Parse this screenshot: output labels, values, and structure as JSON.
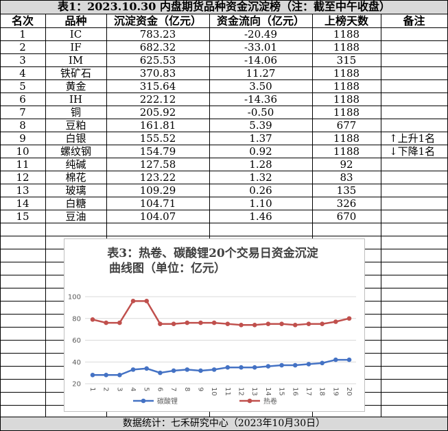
{
  "table": {
    "title": "表1：2023.10.30 内盘期货品种资金沉淀榜（注：截至中午收盘）",
    "headers": [
      "名次",
      "品种",
      "沉淀资金（亿元）",
      "资金流向（亿元）",
      "上榜天数",
      "备注"
    ],
    "rows": [
      [
        "1",
        "IC",
        "783.23",
        "-20.49",
        "1188",
        null
      ],
      [
        "2",
        "IF",
        "682.32",
        "-33.01",
        "1188",
        null
      ],
      [
        "3",
        "IM",
        "625.53",
        "-14.06",
        "315",
        null
      ],
      [
        "4",
        "铁矿石",
        "370.83",
        "11.27",
        "1188",
        null
      ],
      [
        "5",
        "黄金",
        "315.64",
        "3.50",
        "1188",
        null
      ],
      [
        "6",
        "IH",
        "222.12",
        "-14.36",
        "1188",
        null
      ],
      [
        "7",
        "铜",
        "205.92",
        "-0.50",
        "1188",
        null
      ],
      [
        "8",
        "豆粕",
        "161.81",
        "5.39",
        "677",
        null
      ],
      [
        "9",
        "白银",
        "155.52",
        "1.37",
        "1188",
        "↑上升1名"
      ],
      [
        "10",
        "螺纹钢",
        "154.79",
        "0.92",
        "1188",
        "↓下降1名"
      ],
      [
        "11",
        "纯碱",
        "127.58",
        "1.28",
        "92",
        null
      ],
      [
        "12",
        "棉花",
        "123.22",
        "1.32",
        "83",
        null
      ],
      [
        "13",
        "玻璃",
        "109.29",
        "0.26",
        "135",
        null
      ],
      [
        "14",
        "白糖",
        "104.71",
        "1.10",
        "326",
        null
      ],
      [
        "15",
        "豆油",
        "104.07",
        "1.46",
        "670",
        null
      ]
    ]
  },
  "footer": "数据统计：七禾研究中心（2023年10月30日）",
  "chart_data": {
    "type": "line",
    "title": [
      "表3：热卷、碳酸锂20个交易日资金沉淀",
      "曲线图（单位：亿元）"
    ],
    "categories": [
      "1",
      "2",
      "3",
      "4",
      "5",
      "6",
      "7",
      "8",
      "9",
      "10",
      "11",
      "12",
      "13",
      "14",
      "15",
      "16",
      "17",
      "18",
      "19",
      "20"
    ],
    "series": [
      {
        "name": "碳酸锂",
        "color": "#4472c4",
        "values": [
          28,
          28,
          28,
          33,
          34,
          30,
          32,
          33,
          32,
          33,
          35,
          35,
          35,
          36,
          37,
          37,
          38,
          39,
          42,
          42
        ]
      },
      {
        "name": "热卷",
        "color": "#c0504d",
        "values": [
          79,
          76,
          76,
          96,
          96,
          75,
          75,
          76,
          76,
          76,
          75,
          74,
          74,
          75,
          75,
          74,
          75,
          75,
          77,
          80
        ]
      }
    ],
    "ylim": [
      20,
      100
    ],
    "yticks": [
      20,
      40,
      60,
      80,
      100
    ],
    "grid": true,
    "legend": "bottom"
  }
}
